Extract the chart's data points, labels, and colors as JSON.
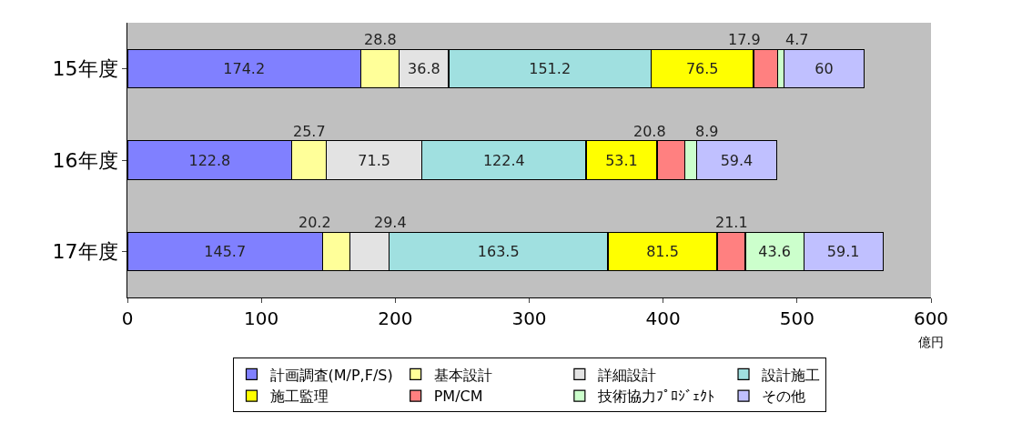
{
  "chart_data": {
    "type": "bar",
    "orientation": "horizontal",
    "stacked": true,
    "categories": [
      "15年度",
      "16年度",
      "17年度"
    ],
    "series": [
      {
        "name": "計画調査(M/P,F/S)",
        "color": "#8080ff",
        "values": [
          174.2,
          122.8,
          145.7
        ]
      },
      {
        "name": "基本設計",
        "color": "#ffff99",
        "values": [
          28.8,
          25.7,
          20.2
        ]
      },
      {
        "name": "詳細設計",
        "color": "#e3e3e3",
        "values": [
          36.8,
          71.5,
          29.4
        ]
      },
      {
        "name": "設計施工",
        "color": "#a0e0e0",
        "values": [
          151.2,
          122.4,
          163.5
        ]
      },
      {
        "name": "施工監理",
        "color": "#ffff00",
        "values": [
          76.5,
          53.1,
          81.5
        ]
      },
      {
        "name": "PM/CM",
        "color": "#ff8080",
        "values": [
          17.9,
          20.8,
          21.1
        ]
      },
      {
        "name": "技術協力ﾌﾟﾛｼﾞｪｸﾄ",
        "color": "#ccffcc",
        "values": [
          4.7,
          8.9,
          43.6
        ]
      },
      {
        "name": "その他",
        "color": "#c0c0ff",
        "values": [
          60,
          59.4,
          59.1
        ]
      }
    ],
    "xlim": [
      0,
      600
    ],
    "xticks": [
      0,
      100,
      200,
      300,
      400,
      500,
      600
    ],
    "xlabel": "億円",
    "data_labels": true,
    "legend": "bottom",
    "grid": false
  }
}
